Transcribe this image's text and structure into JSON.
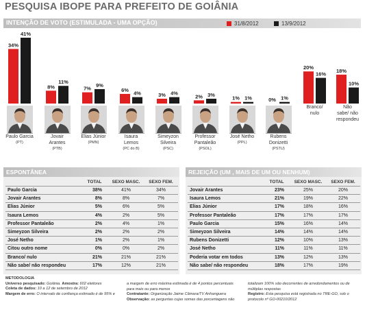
{
  "title": "PESQUISA IBOPE PARA PREFEITO DE GOIÂNIA",
  "chart_data": {
    "type": "bar",
    "title": "INTENÇÃO DE VOTO (ESTIMULADA - UMA OPÇÃO)",
    "categories": [
      "Paulo Garcia",
      "Jovair Arantes",
      "Elias Júnior",
      "Isaura Lemos",
      "Simeyzon Silveira",
      "Professor Pantaleão",
      "José Netho",
      "Rubens Donizetti",
      "Branco/ nulo",
      "Não sabe/ não respondeu"
    ],
    "category_lines": [
      [
        "Paulo Garcia"
      ],
      [
        "Jovair",
        "Arantes"
      ],
      [
        "Elias Júnior"
      ],
      [
        "Isaura",
        "Lemos"
      ],
      [
        "Simeyzon",
        "Silveira"
      ],
      [
        "Professor",
        "Pantaleão"
      ],
      [
        "José Netho"
      ],
      [
        "Rubens",
        "Donizetti"
      ],
      [
        "Branco/",
        "nulo"
      ],
      [
        "Não",
        "sabe/ não",
        "respondeu"
      ]
    ],
    "parties": [
      "(PT)",
      "(PTB)",
      "(PMN)",
      "(PC do B)",
      "(PSC)",
      "(PSOL)",
      "(PPL)",
      "(PSTU)",
      "",
      ""
    ],
    "series": [
      {
        "name": "31/8/2012",
        "values": [
          34,
          8,
          7,
          6,
          3,
          2,
          1,
          0,
          20,
          18
        ],
        "labels": [
          "34%",
          "8%",
          "7%",
          "6%",
          "3%",
          "2%",
          "1%",
          "0%",
          "20%",
          "18%"
        ],
        "color": "#e02020"
      },
      {
        "name": "13/9/2012",
        "values": [
          41,
          11,
          9,
          4,
          4,
          3,
          1,
          1,
          16,
          10
        ],
        "labels": [
          "41%",
          "11%",
          "9%",
          "4%",
          "4%",
          "3%",
          "1%",
          "1%",
          "16%",
          "10%"
        ],
        "color": "#1a1a1a"
      }
    ],
    "ylim": [
      0,
      41
    ]
  },
  "espontanea": {
    "title": "ESPONTÂNEA",
    "headers": [
      "TOTAL",
      "SEXO MASC.",
      "SEXO FEM."
    ],
    "rows": [
      {
        "name": "Paulo Garcia",
        "total": "38%",
        "masc": "41%",
        "fem": "34%"
      },
      {
        "name": "Jovair Arantes",
        "total": "8%",
        "masc": "8%",
        "fem": "7%"
      },
      {
        "name": "Elias Júnior",
        "total": "5%",
        "masc": "6%",
        "fem": "5%"
      },
      {
        "name": "Isaura Lemos",
        "total": "4%",
        "masc": "2%",
        "fem": "5%"
      },
      {
        "name": "Professor Pantaleão",
        "total": "2%",
        "masc": "4%",
        "fem": "1%"
      },
      {
        "name": "Simeyzon Silveira",
        "total": "2%",
        "masc": "2%",
        "fem": "2%"
      },
      {
        "name": "José Netho",
        "total": "1%",
        "masc": "2%",
        "fem": "1%"
      },
      {
        "name": "Citou outro nome",
        "total": "0%",
        "masc": "0%",
        "fem": "2%"
      },
      {
        "name": "Branco/ nulo",
        "total": "21%",
        "masc": "21%",
        "fem": "21%"
      },
      {
        "name": "Não sabe/ não respondeu",
        "total": "17%",
        "masc": "12%",
        "fem": "21%"
      }
    ]
  },
  "rejeicao": {
    "title": "REJEIÇÃO (UM , MAIS DE UM OU NENHUM)",
    "headers": [
      "TOTAL",
      "SEXO MASC.",
      "SEXO FEM."
    ],
    "rows": [
      {
        "name": "Jovair Arantes",
        "total": "23%",
        "masc": "25%",
        "fem": "20%"
      },
      {
        "name": "Isaura Lemos",
        "total": "21%",
        "masc": "19%",
        "fem": "22%"
      },
      {
        "name": "Elias Júnior",
        "total": "17%",
        "masc": "18%",
        "fem": "16%"
      },
      {
        "name": "Professor Pantaleão",
        "total": "17%",
        "masc": "17%",
        "fem": "17%"
      },
      {
        "name": "Paulo Garcia",
        "total": "15%",
        "masc": "16%",
        "fem": "14%"
      },
      {
        "name": "Simeyzon Silveira",
        "total": "14%",
        "masc": "14%",
        "fem": "14%"
      },
      {
        "name": "Rubens Donizetti",
        "total": "12%",
        "masc": "10%",
        "fem": "13%"
      },
      {
        "name": "José Netho",
        "total": "11%",
        "masc": "11%",
        "fem": "11%"
      },
      {
        "name": "Poderia votar em todos",
        "total": "13%",
        "masc": "12%",
        "fem": "13%"
      },
      {
        "name": "Não sabe/ não respondeu",
        "total": "18%",
        "masc": "17%",
        "fem": "19%"
      }
    ]
  },
  "metodologia": {
    "heading": "METODOLOGIA",
    "universo_label": "Universo pesquisado:",
    "universo": "Goiânia.",
    "amostra_label": "Amostra:",
    "amostra": "602 eleitores",
    "coleta_label": "Coleta de dados:",
    "coleta": "10 a 12 de setembro de 2012",
    "margem_label": "Margem de erro:",
    "margem": "O intervalo de confiança estimado é de 95% e",
    "col2_a": "a margem de erro máxima estimada é de 4 pontos percentuais",
    "col2_b": "para mais ou para menos",
    "contratante_label": "Contratante:",
    "contratante": "Organização Jaime Câmara/TV Anhanguera",
    "observacao_label": "Observação:",
    "observacao": "as perguntas cujas somas das porcentagens não",
    "col3_a": "totalizam 100% são decorrentes de arredondamentos ou de",
    "col3_b": "múltiplas respostas",
    "registro_label": "Registro:",
    "registro": "Esta pesquisa está registrada no TRE-GO, sob o",
    "protocolo": "protocolo nº GO-00210/2012"
  }
}
